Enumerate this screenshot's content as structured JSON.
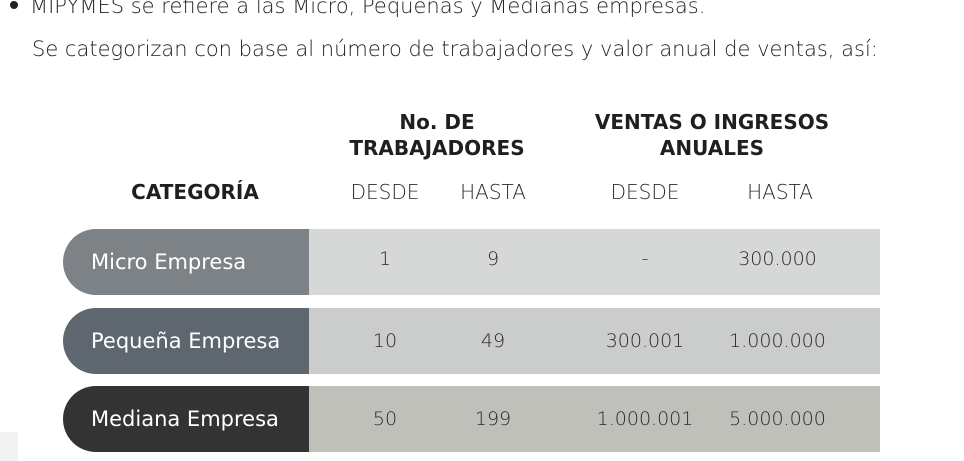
{
  "intro": {
    "line1": "MIPYMES se refiere a las Micro, Pequeñas y Medianas empresas.",
    "line2": "Se categorizan con base al número de trabajadores y valor anual de ventas, así:"
  },
  "table": {
    "headers": {
      "category": "CATEGORÍA",
      "workers": "No. DE TRABAJADORES",
      "sales": "VENTAS O INGRESOS ANUALES",
      "from": "DESDE",
      "to": "HASTA"
    },
    "rows": [
      {
        "category": "Micro Empresa",
        "workers_from": "1",
        "workers_to": "9",
        "sales_from": "-",
        "sales_to": "300.000"
      },
      {
        "category": "Pequeña Empresa",
        "workers_from": "10",
        "workers_to": "49",
        "sales_from": "300.001",
        "sales_to": "1.000.000"
      },
      {
        "category": "Mediana Empresa",
        "workers_from": "50",
        "workers_to": "199",
        "sales_from": "1.000.001",
        "sales_to": "5.000.000"
      }
    ]
  },
  "colors": {
    "micro": "#7d8287",
    "pequena": "#5e6770",
    "mediana": "#333333",
    "band_light": "#d6d7d7",
    "band_mid": "#cbcccc",
    "band_dark": "#c0c0bb"
  }
}
